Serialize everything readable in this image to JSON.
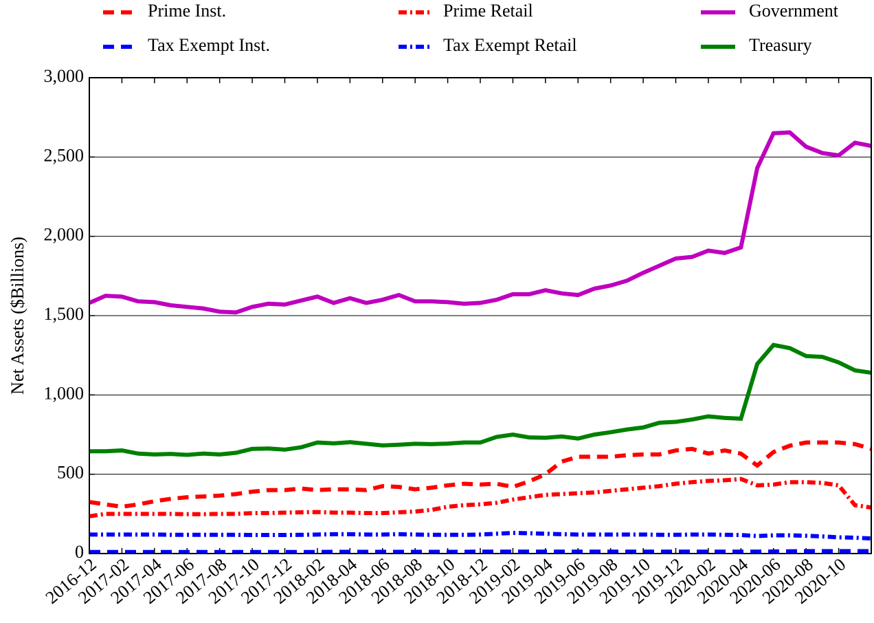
{
  "chart_data": {
    "type": "line",
    "ylabel": "Net Assets ($Billions)",
    "categories": [
      "2016-12",
      null,
      "2017-02",
      null,
      "2017-04",
      null,
      "2017-06",
      null,
      "2017-08",
      null,
      "2017-10",
      null,
      "2017-12",
      null,
      "2018-02",
      null,
      "2018-04",
      null,
      "2018-06",
      null,
      "2018-08",
      null,
      "2018-10",
      null,
      "2018-12",
      null,
      "2019-02",
      null,
      "2019-04",
      null,
      "2019-06",
      null,
      "2019-08",
      null,
      "2019-10",
      null,
      "2019-12",
      null,
      "2020-02",
      null,
      "2020-04",
      null,
      "2020-06",
      null,
      "2020-08",
      null,
      "2020-10",
      null,
      null
    ],
    "ylim": [
      0,
      3000
    ],
    "yticks": [
      0,
      500,
      {
        "value": 1000,
        "label": "1,000"
      },
      {
        "value": 1500,
        "label": "1,500"
      },
      {
        "value": 2000,
        "label": "2,000"
      },
      {
        "value": 2500,
        "label": "2,500"
      },
      {
        "value": 3000,
        "label": "3,000"
      }
    ],
    "grid": true,
    "legend": "top",
    "series": [
      {
        "name": "Prime Inst.",
        "color": "#ff0000",
        "style": "dashed",
        "values": [
          325,
          310,
          295,
          310,
          330,
          345,
          355,
          360,
          365,
          375,
          390,
          400,
          400,
          410,
          400,
          405,
          405,
          400,
          425,
          420,
          405,
          415,
          430,
          440,
          435,
          440,
          420,
          455,
          500,
          580,
          610,
          610,
          610,
          620,
          625,
          625,
          650,
          660,
          630,
          650,
          630,
          555,
          640,
          680,
          700,
          700,
          700,
          690,
          660
        ]
      },
      {
        "name": "Prime Retail",
        "color": "#ff0000",
        "style": "dashdot",
        "values": [
          235,
          250,
          250,
          250,
          250,
          250,
          248,
          248,
          250,
          250,
          255,
          255,
          258,
          260,
          262,
          258,
          258,
          255,
          255,
          260,
          265,
          275,
          295,
          305,
          310,
          320,
          340,
          355,
          370,
          375,
          380,
          385,
          395,
          405,
          415,
          425,
          440,
          450,
          458,
          462,
          470,
          430,
          435,
          450,
          450,
          445,
          430,
          305,
          290
        ]
      },
      {
        "name": "Government",
        "color": "#bf00bf",
        "style": "solid",
        "values": [
          1580,
          1625,
          1620,
          1590,
          1585,
          1565,
          1555,
          1545,
          1525,
          1520,
          1555,
          1575,
          1570,
          1595,
          1620,
          1580,
          1610,
          1580,
          1600,
          1630,
          1590,
          1590,
          1585,
          1575,
          1580,
          1600,
          1635,
          1635,
          1660,
          1640,
          1630,
          1670,
          1690,
          1720,
          1770,
          1815,
          1860,
          1870,
          1910,
          1895,
          1930,
          2430,
          2650,
          2655,
          2565,
          2525,
          2510,
          2590,
          2570
        ]
      },
      {
        "name": "Tax Exempt Inst.",
        "color": "#0000ff",
        "style": "dashed",
        "values": [
          10,
          10,
          10,
          10,
          10,
          10,
          10,
          10,
          10,
          10,
          10,
          10,
          10,
          10,
          10,
          11,
          11,
          11,
          11,
          11,
          11,
          11,
          11,
          11,
          12,
          12,
          12,
          12,
          12,
          12,
          12,
          12,
          12,
          12,
          12,
          12,
          12,
          12,
          12,
          12,
          12,
          12,
          13,
          14,
          15,
          15,
          15,
          15,
          15
        ]
      },
      {
        "name": "Tax Exempt Retail",
        "color": "#0000ff",
        "style": "dashdot",
        "values": [
          120,
          120,
          120,
          120,
          120,
          118,
          118,
          118,
          118,
          118,
          117,
          117,
          117,
          118,
          120,
          122,
          122,
          120,
          120,
          122,
          120,
          118,
          118,
          118,
          120,
          125,
          130,
          128,
          125,
          122,
          120,
          120,
          120,
          120,
          120,
          118,
          118,
          120,
          120,
          118,
          117,
          110,
          115,
          115,
          112,
          108,
          102,
          100,
          95
        ]
      },
      {
        "name": "Treasury",
        "color": "#008000",
        "style": "solid",
        "values": [
          645,
          645,
          650,
          630,
          625,
          628,
          622,
          630,
          625,
          635,
          660,
          662,
          655,
          670,
          700,
          695,
          702,
          692,
          682,
          686,
          692,
          690,
          693,
          700,
          700,
          735,
          750,
          732,
          730,
          738,
          725,
          750,
          765,
          782,
          795,
          825,
          830,
          845,
          865,
          855,
          850,
          1195,
          1315,
          1295,
          1245,
          1240,
          1205,
          1155,
          1140
        ]
      }
    ]
  }
}
